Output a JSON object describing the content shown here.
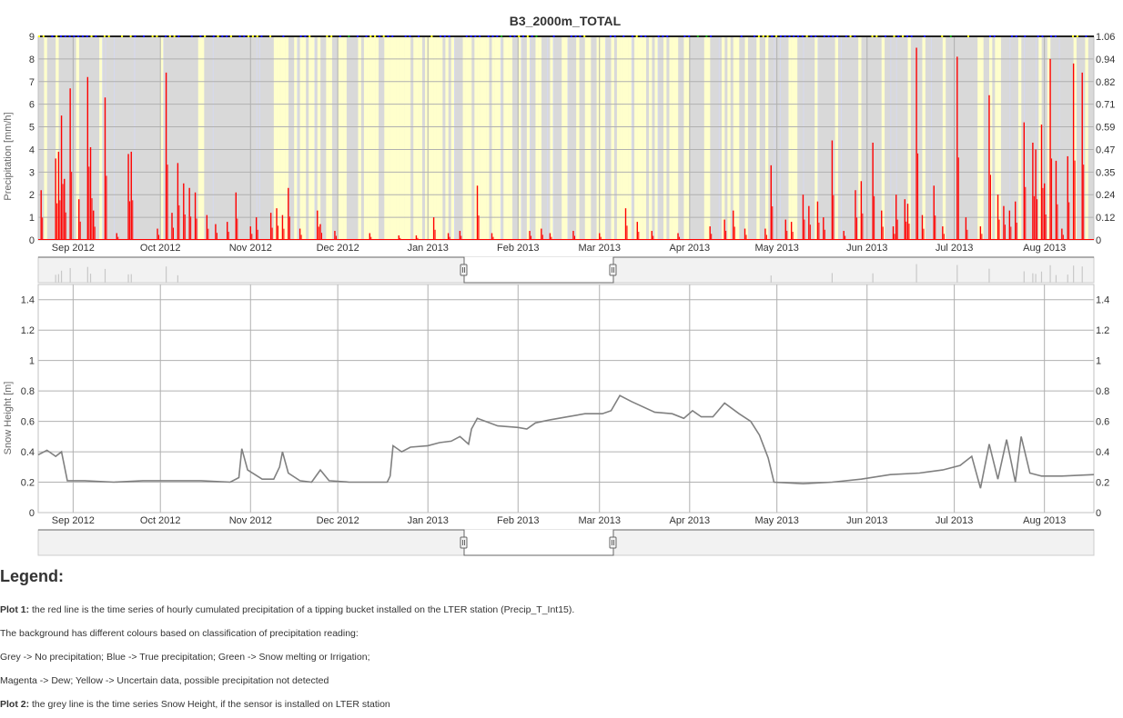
{
  "chart_data": [
    {
      "type": "bar",
      "title": "B3_2000m_TOTAL",
      "ylabel": "Precipitation [mm/h]",
      "ylim": [
        0,
        9
      ],
      "y_ticks": [
        "0",
        "1",
        "2",
        "3",
        "4",
        "5",
        "6",
        "7",
        "8",
        "9"
      ],
      "y2_ticks": [
        "0",
        "0.12",
        "0.24",
        "0.35",
        "0.47",
        "0.59",
        "0.71",
        "0.82",
        "0.94",
        "1.06"
      ],
      "x_ticks": [
        "Sep 2012",
        "Oct 2012",
        "Nov 2012",
        "Dec 2012",
        "Jan 2013",
        "Feb 2013",
        "Mar 2013",
        "Apr 2013",
        "May 2013",
        "Jun 2013",
        "Jul 2013",
        "Aug 2013"
      ],
      "xlim": [
        "2012-08-20",
        "2013-08-18"
      ],
      "grid": true,
      "series": [
        {
          "color": "#ff0000",
          "points": [
            [
              "2012-08-21",
              2.2
            ],
            [
              "2012-08-26",
              3.6
            ],
            [
              "2012-08-27",
              3.9
            ],
            [
              "2012-08-28",
              5.5
            ],
            [
              "2012-08-29",
              2.7
            ],
            [
              "2012-08-31",
              6.7
            ],
            [
              "2012-09-03",
              1.8
            ],
            [
              "2012-09-06",
              7.2
            ],
            [
              "2012-09-07",
              4.1
            ],
            [
              "2012-09-08",
              1.3
            ],
            [
              "2012-09-12",
              6.3
            ],
            [
              "2012-09-16",
              0.3
            ],
            [
              "2012-09-20",
              3.8
            ],
            [
              "2012-09-21",
              3.9
            ],
            [
              "2012-09-30",
              0.5
            ],
            [
              "2012-10-03",
              7.4
            ],
            [
              "2012-10-05",
              1.2
            ],
            [
              "2012-10-07",
              3.4
            ],
            [
              "2012-10-09",
              2.5
            ],
            [
              "2012-10-11",
              2.3
            ],
            [
              "2012-10-13",
              2.1
            ],
            [
              "2012-10-17",
              1.1
            ],
            [
              "2012-10-20",
              0.7
            ],
            [
              "2012-10-24",
              0.8
            ],
            [
              "2012-10-27",
              2.1
            ],
            [
              "2012-11-01",
              0.6
            ],
            [
              "2012-11-03",
              1.0
            ],
            [
              "2012-11-08",
              1.2
            ],
            [
              "2012-11-10",
              1.4
            ],
            [
              "2012-11-12",
              1.1
            ],
            [
              "2012-11-14",
              2.3
            ],
            [
              "2012-11-18",
              0.5
            ],
            [
              "2012-11-24",
              1.3
            ],
            [
              "2012-11-25",
              0.7
            ],
            [
              "2012-11-30",
              0.4
            ],
            [
              "2012-12-12",
              0.3
            ],
            [
              "2012-12-22",
              0.2
            ],
            [
              "2012-12-28",
              0.2
            ],
            [
              "2013-01-03",
              1.0
            ],
            [
              "2013-01-08",
              0.3
            ],
            [
              "2013-01-12",
              0.4
            ],
            [
              "2013-01-18",
              2.4
            ],
            [
              "2013-01-23",
              0.3
            ],
            [
              "2013-02-05",
              0.4
            ],
            [
              "2013-02-09",
              0.5
            ],
            [
              "2013-02-12",
              0.3
            ],
            [
              "2013-02-20",
              0.4
            ],
            [
              "2013-03-01",
              0.3
            ],
            [
              "2013-03-10",
              1.4
            ],
            [
              "2013-03-14",
              0.8
            ],
            [
              "2013-03-19",
              0.4
            ],
            [
              "2013-03-28",
              0.3
            ],
            [
              "2013-04-08",
              0.6
            ],
            [
              "2013-04-13",
              0.9
            ],
            [
              "2013-04-16",
              1.3
            ],
            [
              "2013-04-20",
              0.5
            ],
            [
              "2013-04-27",
              0.5
            ],
            [
              "2013-04-29",
              3.3
            ],
            [
              "2013-05-04",
              0.9
            ],
            [
              "2013-05-06",
              0.8
            ],
            [
              "2013-05-10",
              2.0
            ],
            [
              "2013-05-12",
              1.5
            ],
            [
              "2013-05-15",
              1.7
            ],
            [
              "2013-05-17",
              1.0
            ],
            [
              "2013-05-20",
              4.4
            ],
            [
              "2013-05-24",
              0.4
            ],
            [
              "2013-05-28",
              2.2
            ],
            [
              "2013-05-30",
              2.6
            ],
            [
              "2013-06-03",
              4.3
            ],
            [
              "2013-06-06",
              1.3
            ],
            [
              "2013-06-10",
              0.6
            ],
            [
              "2013-06-11",
              2.0
            ],
            [
              "2013-06-14",
              1.8
            ],
            [
              "2013-06-15",
              1.6
            ],
            [
              "2013-06-18",
              8.5
            ],
            [
              "2013-06-20",
              1.1
            ],
            [
              "2013-06-24",
              2.4
            ],
            [
              "2013-06-27",
              0.6
            ],
            [
              "2013-07-02",
              8.1
            ],
            [
              "2013-07-05",
              1.0
            ],
            [
              "2013-07-10",
              0.6
            ],
            [
              "2013-07-13",
              6.4
            ],
            [
              "2013-07-16",
              2.0
            ],
            [
              "2013-07-18",
              1.5
            ],
            [
              "2013-07-20",
              1.3
            ],
            [
              "2013-07-22",
              1.7
            ],
            [
              "2013-07-25",
              5.2
            ],
            [
              "2013-07-28",
              4.3
            ],
            [
              "2013-07-29",
              4.0
            ],
            [
              "2013-07-31",
              5.1
            ],
            [
              "2013-08-01",
              2.5
            ],
            [
              "2013-08-03",
              8.0
            ],
            [
              "2013-08-05",
              3.5
            ],
            [
              "2013-08-07",
              0.5
            ],
            [
              "2013-08-09",
              3.7
            ],
            [
              "2013-08-11",
              7.8
            ],
            [
              "2013-08-14",
              7.4
            ]
          ]
        }
      ]
    },
    {
      "type": "line",
      "ylabel": "Snow Height [m]",
      "ylim": [
        0,
        1.5
      ],
      "y_ticks": [
        "0",
        "0.2",
        "0.4",
        "0.6",
        "0.8",
        "1",
        "1.2",
        "1.4"
      ],
      "y2_ticks": [
        "0",
        "0.2",
        "0.4",
        "0.6",
        "0.8",
        "1",
        "1.2",
        "1.4"
      ],
      "x_ticks": [
        "Sep 2012",
        "Oct 2012",
        "Nov 2012",
        "Dec 2012",
        "Jan 2013",
        "Feb 2013",
        "Mar 2013",
        "Apr 2013",
        "May 2013",
        "Jun 2013",
        "Jul 2013",
        "Aug 2013"
      ],
      "xlim": [
        "2012-08-20",
        "2013-08-18"
      ],
      "grid": true,
      "series": [
        {
          "color": "#808080",
          "points": [
            [
              "2012-08-20",
              0.38
            ],
            [
              "2012-08-23",
              0.41
            ],
            [
              "2012-08-26",
              0.37
            ],
            [
              "2012-08-28",
              0.4
            ],
            [
              "2012-08-30",
              0.21
            ],
            [
              "2012-09-05",
              0.21
            ],
            [
              "2012-09-15",
              0.2
            ],
            [
              "2012-09-25",
              0.21
            ],
            [
              "2012-10-05",
              0.21
            ],
            [
              "2012-10-15",
              0.21
            ],
            [
              "2012-10-25",
              0.2
            ],
            [
              "2012-10-28",
              0.23
            ],
            [
              "2012-10-29",
              0.42
            ],
            [
              "2012-10-31",
              0.28
            ],
            [
              "2012-11-05",
              0.22
            ],
            [
              "2012-11-09",
              0.22
            ],
            [
              "2012-11-11",
              0.3
            ],
            [
              "2012-11-12",
              0.4
            ],
            [
              "2012-11-14",
              0.26
            ],
            [
              "2012-11-18",
              0.21
            ],
            [
              "2012-11-22",
              0.2
            ],
            [
              "2012-11-25",
              0.28
            ],
            [
              "2012-11-28",
              0.21
            ],
            [
              "2012-12-05",
              0.2
            ],
            [
              "2012-12-12",
              0.2
            ],
            [
              "2012-12-18",
              0.2
            ],
            [
              "2012-12-19",
              0.24
            ],
            [
              "2012-12-20",
              0.44
            ],
            [
              "2012-12-23",
              0.4
            ],
            [
              "2012-12-26",
              0.43
            ],
            [
              "2013-01-01",
              0.44
            ],
            [
              "2013-01-05",
              0.46
            ],
            [
              "2013-01-09",
              0.47
            ],
            [
              "2013-01-12",
              0.5
            ],
            [
              "2013-01-15",
              0.45
            ],
            [
              "2013-01-16",
              0.55
            ],
            [
              "2013-01-18",
              0.62
            ],
            [
              "2013-01-25",
              0.57
            ],
            [
              "2013-02-01",
              0.56
            ],
            [
              "2013-02-04",
              0.55
            ],
            [
              "2013-02-07",
              0.59
            ],
            [
              "2013-02-12",
              0.61
            ],
            [
              "2013-02-18",
              0.63
            ],
            [
              "2013-02-24",
              0.65
            ],
            [
              "2013-03-02",
              0.65
            ],
            [
              "2013-03-05",
              0.67
            ],
            [
              "2013-03-08",
              0.77
            ],
            [
              "2013-03-12",
              0.73
            ],
            [
              "2013-03-20",
              0.66
            ],
            [
              "2013-03-26",
              0.65
            ],
            [
              "2013-03-30",
              0.62
            ],
            [
              "2013-04-02",
              0.67
            ],
            [
              "2013-04-05",
              0.63
            ],
            [
              "2013-04-09",
              0.63
            ],
            [
              "2013-04-13",
              0.72
            ],
            [
              "2013-04-18",
              0.65
            ],
            [
              "2013-04-22",
              0.6
            ],
            [
              "2013-04-25",
              0.51
            ],
            [
              "2013-04-28",
              0.36
            ],
            [
              "2013-04-30",
              0.2
            ],
            [
              "2013-05-10",
              0.19
            ],
            [
              "2013-05-20",
              0.2
            ],
            [
              "2013-05-30",
              0.22
            ],
            [
              "2013-06-09",
              0.25
            ],
            [
              "2013-06-19",
              0.26
            ],
            [
              "2013-06-27",
              0.28
            ],
            [
              "2013-07-03",
              0.31
            ],
            [
              "2013-07-07",
              0.37
            ],
            [
              "2013-07-10",
              0.16
            ],
            [
              "2013-07-13",
              0.45
            ],
            [
              "2013-07-16",
              0.22
            ],
            [
              "2013-07-19",
              0.48
            ],
            [
              "2013-07-22",
              0.2
            ],
            [
              "2013-07-24",
              0.5
            ],
            [
              "2013-07-27",
              0.26
            ],
            [
              "2013-07-31",
              0.24
            ],
            [
              "2013-08-07",
              0.24
            ],
            [
              "2013-08-18",
              0.25
            ]
          ]
        }
      ]
    }
  ],
  "legend": {
    "heading": "Legend:",
    "p1_label": "Plot 1:",
    "p1_text": " the red line is the time series of hourly cumulated precipitation of a tipping bucket installed on the LTER station (Precip_T_Int15).",
    "p2_text": "The background has different colours based on classification of precipitation reading:",
    "p3_text": "Grey -> No precipitation; Blue -> True precipitation; Green -> Snow melting or Irrigation;",
    "p4_text": "Magenta -> Dew; Yellow -> Uncertain data, possible precipitation not detected",
    "p5_label": "Plot 2:",
    "p5_text": " the grey line is the time series Snow Height, if the sensor is installed on LTER station"
  },
  "colors": {
    "precip_line": "#ff0000",
    "snow_line": "#808080",
    "bg_grey": "#d9d9d9",
    "bg_yellow": "#ffffcc",
    "bg_blue": "#d6d9f0",
    "class_blue": "#0000ff",
    "class_yellow": "#ffff00",
    "class_green": "#00aa00"
  }
}
